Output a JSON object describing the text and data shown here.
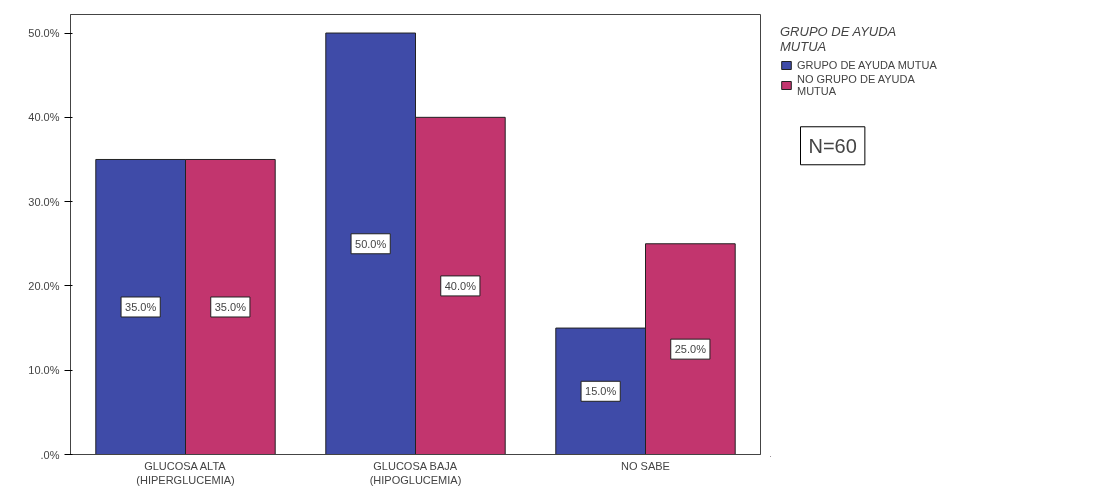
{
  "chart_data": {
    "type": "bar",
    "categories": [
      "GLUCOSA ALTA\n(HIPERGLUCEMIA)",
      "GLUCOSA BAJA\n(HIPOGLUCEMIA)",
      "NO SABE"
    ],
    "series": [
      {
        "name": "GRUPO DE AYUDA MUTUA",
        "color": "#3f4ba8",
        "values": [
          35,
          50,
          15
        ],
        "value_labels": [
          "35.0%",
          "50.0%",
          "15.0%"
        ]
      },
      {
        "name": "NO GRUPO DE AYUDA\nMUTUA",
        "color": "#c2356e",
        "values": [
          35,
          40,
          25
        ],
        "value_labels": [
          "35.0%",
          "40.0%",
          "25.0%"
        ]
      }
    ],
    "ylim": [
      0,
      52.2
    ],
    "yticks": [
      {
        "value": 0,
        "label": ".0%"
      },
      {
        "value": 10,
        "label": "10.0%"
      },
      {
        "value": 20,
        "label": "20.0%"
      },
      {
        "value": 30,
        "label": "30.0%"
      },
      {
        "value": 40,
        "label": "40.0%"
      },
      {
        "value": 50,
        "label": "50.0%"
      }
    ],
    "legend_title": "GRUPO DE AYUDA\nMUTUA",
    "legend": "right",
    "grid": false,
    "annotations": [
      "N=60"
    ]
  }
}
